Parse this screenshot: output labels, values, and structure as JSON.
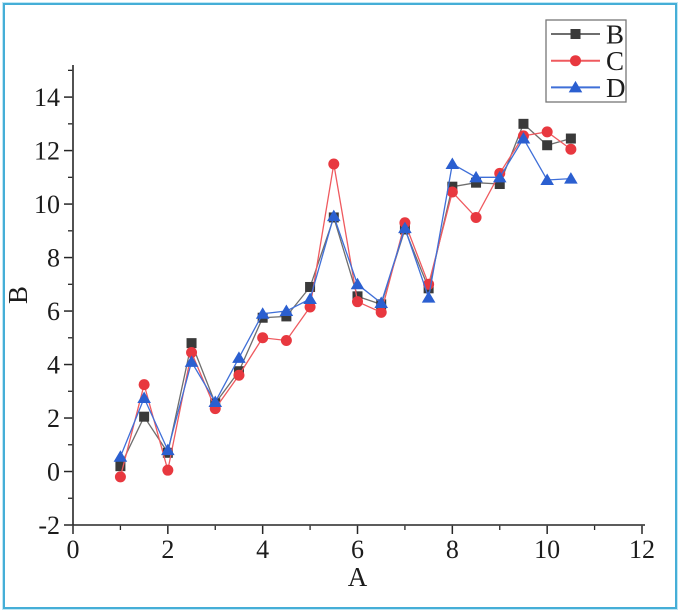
{
  "figure": {
    "background": "#ffffff",
    "border_color": "#45aed7",
    "border_outer_color": "#bfe7f4",
    "axis_color": "#262626",
    "text_color": "#1c1c1c",
    "legend_border_color": "#777777"
  },
  "chart_data": {
    "type": "line",
    "title": "",
    "xlabel": "A",
    "ylabel": "B",
    "xlim": [
      0,
      12
    ],
    "ylim": [
      -2,
      15.2
    ],
    "grid": false,
    "legend_position": "top-right",
    "x_major_ticks": [
      0,
      2,
      4,
      6,
      8,
      10,
      12
    ],
    "x_minor_ticks": [
      1,
      3,
      5,
      7,
      9,
      11
    ],
    "y_major_ticks": [
      -2,
      0,
      2,
      4,
      6,
      8,
      10,
      12,
      14
    ],
    "y_minor_ticks": [
      -1,
      1,
      3,
      5,
      7,
      9,
      11,
      13,
      15
    ],
    "x": [
      1,
      1.5,
      2,
      2.5,
      3,
      3.5,
      4,
      4.5,
      5,
      5.5,
      6,
      6.5,
      7,
      7.5,
      8,
      8.5,
      9,
      9.5,
      10,
      10.5
    ],
    "series": [
      {
        "name": "B",
        "marker": "square",
        "marker_color": "#3a3a3a",
        "line_color": "#6e6e6e",
        "values": [
          0.2,
          2.05,
          0.7,
          4.8,
          2.55,
          3.75,
          5.75,
          5.8,
          6.9,
          9.5,
          6.55,
          6.25,
          9.05,
          6.85,
          10.65,
          10.8,
          10.75,
          13.0,
          12.2,
          12.45
        ]
      },
      {
        "name": "C",
        "marker": "circle",
        "marker_color": "#e8383f",
        "line_color": "#ef5a5f",
        "values": [
          -0.2,
          3.25,
          0.05,
          4.45,
          2.35,
          3.6,
          5.0,
          4.9,
          6.15,
          11.5,
          6.35,
          5.95,
          9.3,
          7.0,
          10.45,
          9.5,
          11.15,
          12.55,
          12.7,
          12.05
        ]
      },
      {
        "name": "D",
        "marker": "triangle",
        "marker_color": "#2b5fd0",
        "line_color": "#3f6fd8",
        "values": [
          0.55,
          2.75,
          0.8,
          4.1,
          2.6,
          4.25,
          5.9,
          6.0,
          6.45,
          9.55,
          7.0,
          6.3,
          9.1,
          6.5,
          11.5,
          11.0,
          11.0,
          12.45,
          10.9,
          10.95
        ]
      }
    ]
  }
}
